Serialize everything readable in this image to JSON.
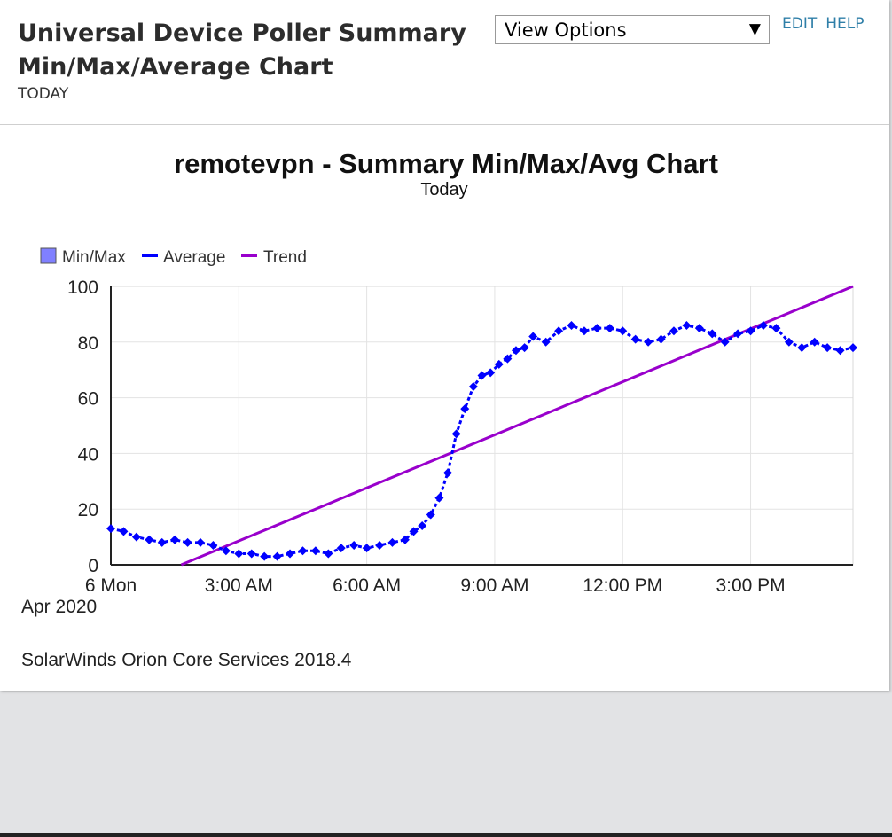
{
  "header": {
    "title_line1": "Universal Device Poller Summary",
    "title_line2": "Min/Max/Average Chart",
    "subtitle": "TODAY",
    "view_options_label": "View Options",
    "edit_label": "EDIT",
    "help_label": "HELP"
  },
  "colors": {
    "minmax": "#8080ff",
    "average": "#0000ff",
    "trend": "#9900cc",
    "link": "#2f7fa8"
  },
  "chart_data": {
    "type": "line",
    "title": "remotevpn - Summary Min/Max/Avg Chart",
    "subtitle": "Today",
    "legend": [
      "Min/Max",
      "Average",
      "Trend"
    ],
    "legend_placement": "top-left",
    "grid": true,
    "ylim": [
      0,
      100
    ],
    "yticks": [
      "0",
      "20",
      "40",
      "60",
      "80",
      "100"
    ],
    "xlim_hours": [
      0,
      17.4
    ],
    "xticks": [
      {
        "hour": 0,
        "label1": "6 Mon",
        "label2": "Apr 2020"
      },
      {
        "hour": 3,
        "label1": "3:00 AM"
      },
      {
        "hour": 6,
        "label1": "6:00 AM"
      },
      {
        "hour": 9,
        "label1": "9:00 AM"
      },
      {
        "hour": 12,
        "label1": "12:00 PM"
      },
      {
        "hour": 15,
        "label1": "3:00 PM"
      }
    ],
    "series": [
      {
        "name": "Average",
        "x": [
          0,
          0.3,
          0.6,
          0.9,
          1.2,
          1.5,
          1.8,
          2.1,
          2.4,
          2.7,
          3.0,
          3.3,
          3.6,
          3.9,
          4.2,
          4.5,
          4.8,
          5.1,
          5.4,
          5.7,
          6.0,
          6.3,
          6.6,
          6.9,
          7.1,
          7.3,
          7.5,
          7.7,
          7.9,
          8.1,
          8.3,
          8.5,
          8.7,
          8.9,
          9.1,
          9.3,
          9.5,
          9.7,
          9.9,
          10.2,
          10.5,
          10.8,
          11.1,
          11.4,
          11.7,
          12.0,
          12.3,
          12.6,
          12.9,
          13.2,
          13.5,
          13.8,
          14.1,
          14.4,
          14.7,
          15.0,
          15.3,
          15.6,
          15.9,
          16.2,
          16.5,
          16.8,
          17.1,
          17.4
        ],
        "y": [
          13,
          12,
          10,
          9,
          8,
          9,
          8,
          8,
          7,
          5,
          4,
          4,
          3,
          3,
          4,
          5,
          5,
          4,
          6,
          7,
          6,
          7,
          8,
          9,
          12,
          14,
          18,
          24,
          33,
          47,
          56,
          64,
          68,
          69,
          72,
          74,
          77,
          78,
          82,
          80,
          84,
          86,
          84,
          85,
          85,
          84,
          81,
          80,
          81,
          84,
          86,
          85,
          83,
          80,
          83,
          84,
          86,
          85,
          80,
          78,
          80,
          78,
          77,
          78
        ]
      },
      {
        "name": "Trend",
        "x": [
          1.65,
          17.4
        ],
        "y": [
          0,
          100
        ]
      }
    ],
    "footer": "SolarWinds Orion Core Services 2018.4"
  }
}
